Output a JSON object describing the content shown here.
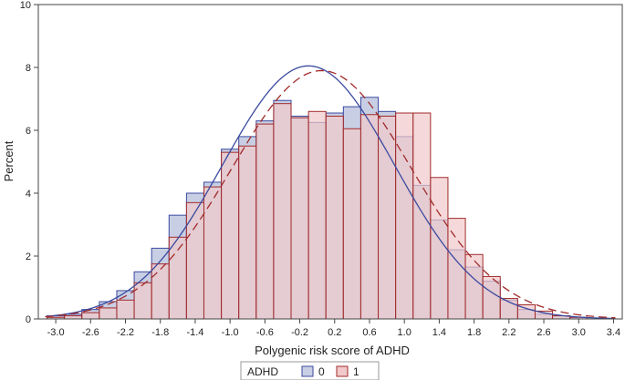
{
  "chart_data": {
    "type": "histogram",
    "title": "",
    "xlabel": "Polygenic risk score of ADHD",
    "ylabel": "Percent",
    "xlim": [
      -3.2,
      3.5
    ],
    "ylim": [
      0,
      10
    ],
    "bin_width": 0.2,
    "xticks": [
      -3.0,
      -2.6,
      -2.2,
      -1.8,
      -1.4,
      -1.0,
      -0.6,
      -0.2,
      0.2,
      0.6,
      1.0,
      1.4,
      1.8,
      2.2,
      2.6,
      3.0,
      3.4
    ],
    "xtick_labels": [
      "-3.0",
      "-2.6",
      "-2.2",
      "-1.8",
      "-1.4",
      "-1.0",
      "-0.6",
      "-0.2",
      "0.2",
      "0.6",
      "1.0",
      "1.4",
      "1.8",
      "2.2",
      "2.6",
      "3.0",
      "3.4"
    ],
    "yticks": [
      0,
      2,
      4,
      6,
      8,
      10
    ],
    "ytick_labels": [
      "0",
      "2",
      "4",
      "6",
      "8",
      "10"
    ],
    "grid": false,
    "legend": {
      "title": "ADHD",
      "position": "bottom-left",
      "entries": [
        "0",
        "1"
      ]
    },
    "series": [
      {
        "name": "0",
        "fill_color": "#c8cfe4",
        "line_color": "#3b4aa0",
        "curve_style": "solid",
        "bin_centers": [
          -3.0,
          -2.8,
          -2.6,
          -2.4,
          -2.2,
          -2.0,
          -1.8,
          -1.6,
          -1.4,
          -1.2,
          -1.0,
          -0.8,
          -0.6,
          -0.4,
          -0.2,
          0.0,
          0.2,
          0.4,
          0.6,
          0.8,
          1.0,
          1.2,
          1.4,
          1.6,
          1.8,
          2.0,
          2.2,
          2.4,
          2.6,
          2.8,
          3.0
        ],
        "values": [
          0.1,
          0.15,
          0.3,
          0.55,
          0.9,
          1.5,
          2.25,
          3.3,
          4.0,
          4.35,
          5.4,
          5.8,
          6.3,
          6.95,
          6.45,
          6.25,
          6.55,
          6.75,
          7.05,
          6.6,
          5.8,
          4.25,
          3.15,
          2.2,
          1.65,
          1.2,
          0.6,
          0.3,
          0.15,
          0.1,
          0.05
        ],
        "normal_fit": {
          "mean": -0.1,
          "peak": 8.05,
          "sd": 0.99
        }
      },
      {
        "name": "1",
        "fill_color": "#f1c9cb",
        "line_color": "#a12b2b",
        "curve_style": "dashed",
        "bin_centers": [
          -3.0,
          -2.8,
          -2.6,
          -2.4,
          -2.2,
          -2.0,
          -1.8,
          -1.6,
          -1.4,
          -1.2,
          -1.0,
          -0.8,
          -0.6,
          -0.4,
          -0.2,
          0.0,
          0.2,
          0.4,
          0.6,
          0.8,
          1.0,
          1.2,
          1.4,
          1.6,
          1.8,
          2.0,
          2.2,
          2.4,
          2.6,
          2.8,
          3.0
        ],
        "values": [
          0.05,
          0.1,
          0.2,
          0.35,
          0.6,
          1.15,
          1.75,
          2.6,
          3.7,
          4.2,
          5.3,
          5.5,
          6.2,
          6.85,
          6.4,
          6.6,
          6.45,
          6.05,
          6.5,
          6.45,
          6.55,
          6.55,
          4.5,
          3.2,
          2.05,
          1.35,
          0.65,
          0.45,
          0.25,
          0.1,
          0.05
        ],
        "normal_fit": {
          "mean": 0.05,
          "peak": 7.9,
          "sd": 1.03
        }
      }
    ]
  }
}
